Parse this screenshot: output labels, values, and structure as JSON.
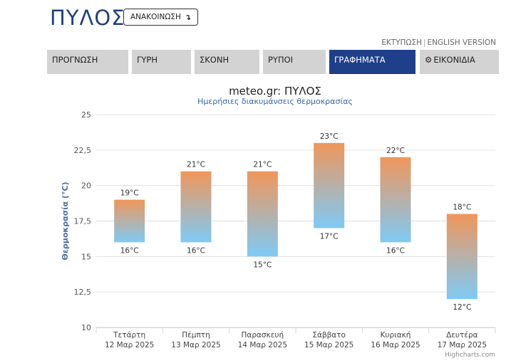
{
  "header": {
    "city": "ΠΥΛΟΣ",
    "refresh_label": "ΑΝΑΚΟΙΝΩΣΗ",
    "refresh_icon": "↴",
    "print_label": "ΕΚΤΥΠΩΣΗ",
    "separator": "|",
    "english_label": "ENGLISH VERSION"
  },
  "tabs": [
    {
      "label": "ΠΡΟΓΝΩΣΗ"
    },
    {
      "label": "ΓΥΡΗ"
    },
    {
      "label": "ΣΚΟΝΗ"
    },
    {
      "label": "ΡΥΠΟΙ"
    },
    {
      "label": "ΓΡΑΦΗΜΑΤΑ"
    },
    {
      "label": "ΕΙΚΟΝΙΔΙΑ",
      "icon": "gear-icon"
    }
  ],
  "active_tab": "ΓΡΑΦΗΜΑΤΑ",
  "colors": {
    "brand": "#20407a",
    "active_tab": "#1f3f8a",
    "tab_bg": "#d3d3d3",
    "bar_top": "#f0965a",
    "bar_bottom": "#7ecaf5",
    "subtitle": "#3a64a8",
    "axis_title": "#4a6ea0"
  },
  "chart_data": {
    "type": "columnrange",
    "title": "meteo.gr: ΠΥΛΟΣ",
    "subtitle": "Ημερήσιες διακυμάνσεις θερμοκρασίας",
    "ylabel": "Θερμοκρασία (°C)",
    "ylim": [
      10,
      25
    ],
    "yticks": [
      "10",
      "12,5",
      "15",
      "17,5",
      "20",
      "22,5",
      "25"
    ],
    "ytick_values": [
      10,
      12.5,
      15,
      17.5,
      20,
      22.5,
      25
    ],
    "categories": [
      {
        "day": "Τετάρτη",
        "date": "12 Μαρ 2025"
      },
      {
        "day": "Πέμπτη",
        "date": "13 Μαρ 2025"
      },
      {
        "day": "Παρασκευή",
        "date": "14 Μαρ 2025"
      },
      {
        "day": "Σάββατο",
        "date": "15 Μαρ 2025"
      },
      {
        "day": "Κυριακή",
        "date": "16 Μαρ 2025"
      },
      {
        "day": "Δευτέρα",
        "date": "17 Μαρ 2025"
      }
    ],
    "min": [
      16,
      16,
      15,
      17,
      16,
      12
    ],
    "max": [
      19,
      21,
      21,
      23,
      22,
      18
    ],
    "min_labels": [
      "16°C",
      "16°C",
      "15°C",
      "17°C",
      "16°C",
      "12°C"
    ],
    "max_labels": [
      "19°C",
      "21°C",
      "21°C",
      "23°C",
      "22°C",
      "18°C"
    ],
    "grid": true,
    "legend": "none",
    "credits": "Highcharts.com"
  }
}
